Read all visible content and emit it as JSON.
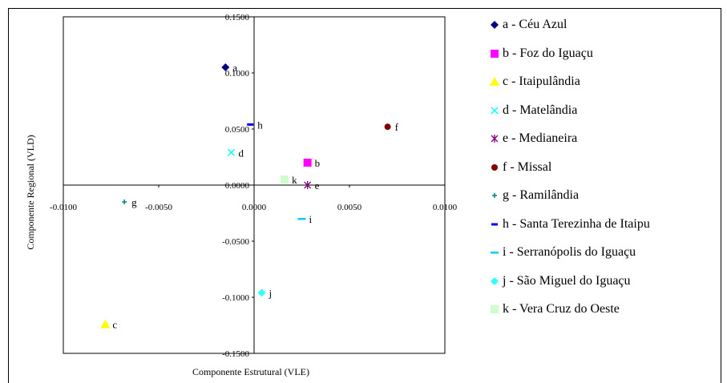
{
  "chart_data": {
    "type": "scatter",
    "xlabel": "Componente Estrutural (VLE)",
    "ylabel": "Componente Regional (VLD)",
    "xlim": [
      -0.01,
      0.01
    ],
    "ylim": [
      -0.15,
      0.15
    ],
    "x_ticks": [
      "-0.0100",
      "-0.0050",
      "0.0000",
      "0.0050",
      "0.0100"
    ],
    "y_ticks": [
      "0.1500",
      "0.1000",
      "0.0500",
      "0.0000",
      "-0.0500",
      "-0.1000",
      "-0.1500"
    ],
    "grid": false,
    "legend_position": "right",
    "series": [
      {
        "label": "a",
        "name": "a - Céu Azul",
        "x": -0.0015,
        "y": 0.105,
        "marker": "diamond",
        "color": "#000080",
        "show_label": true
      },
      {
        "label": "b",
        "name": "b - Foz do Iguaçu",
        "x": 0.0028,
        "y": 0.02,
        "marker": "square",
        "color": "#ff00ff",
        "show_label": true
      },
      {
        "label": "c",
        "name": "c - Itaipulândia",
        "x": -0.0078,
        "y": -0.124,
        "marker": "triangle",
        "color": "#ffff00",
        "show_label": true
      },
      {
        "label": "d",
        "name": "d - Matelândia",
        "x": -0.0012,
        "y": 0.029,
        "marker": "x",
        "color": "#00ffff",
        "show_label": true
      },
      {
        "label": "e",
        "name": "e - Medianeira",
        "x": 0.0028,
        "y": 0.0,
        "marker": "star",
        "color": "#800080",
        "show_label": true
      },
      {
        "label": "f",
        "name": "f - Missal",
        "x": 0.007,
        "y": 0.052,
        "marker": "circle",
        "color": "#800000",
        "show_label": true
      },
      {
        "label": "g",
        "name": "g - Ramilândia",
        "x": -0.0068,
        "y": -0.015,
        "marker": "plus",
        "color": "#008080",
        "show_label": true
      },
      {
        "label": "h",
        "name": "h - Santa Terezinha de Itaipu",
        "x": -0.0002,
        "y": 0.054,
        "marker": "hbar",
        "color": "#0000ff",
        "show_label": true
      },
      {
        "label": "i",
        "name": "i - Serranópolis do Iguaçu",
        "x": 0.0025,
        "y": -0.03,
        "marker": "dash",
        "color": "#00ccff",
        "show_label": true
      },
      {
        "label": "j",
        "name": "j - São Miguel do Iguaçu",
        "x": 0.0004,
        "y": -0.096,
        "marker": "diamond",
        "color": "#33ffff",
        "show_label": true
      },
      {
        "label": "k",
        "name": "k - Vera Cruz do Oeste",
        "x": 0.0016,
        "y": 0.005,
        "marker": "square",
        "color": "#ccffcc",
        "show_label": true
      }
    ]
  }
}
